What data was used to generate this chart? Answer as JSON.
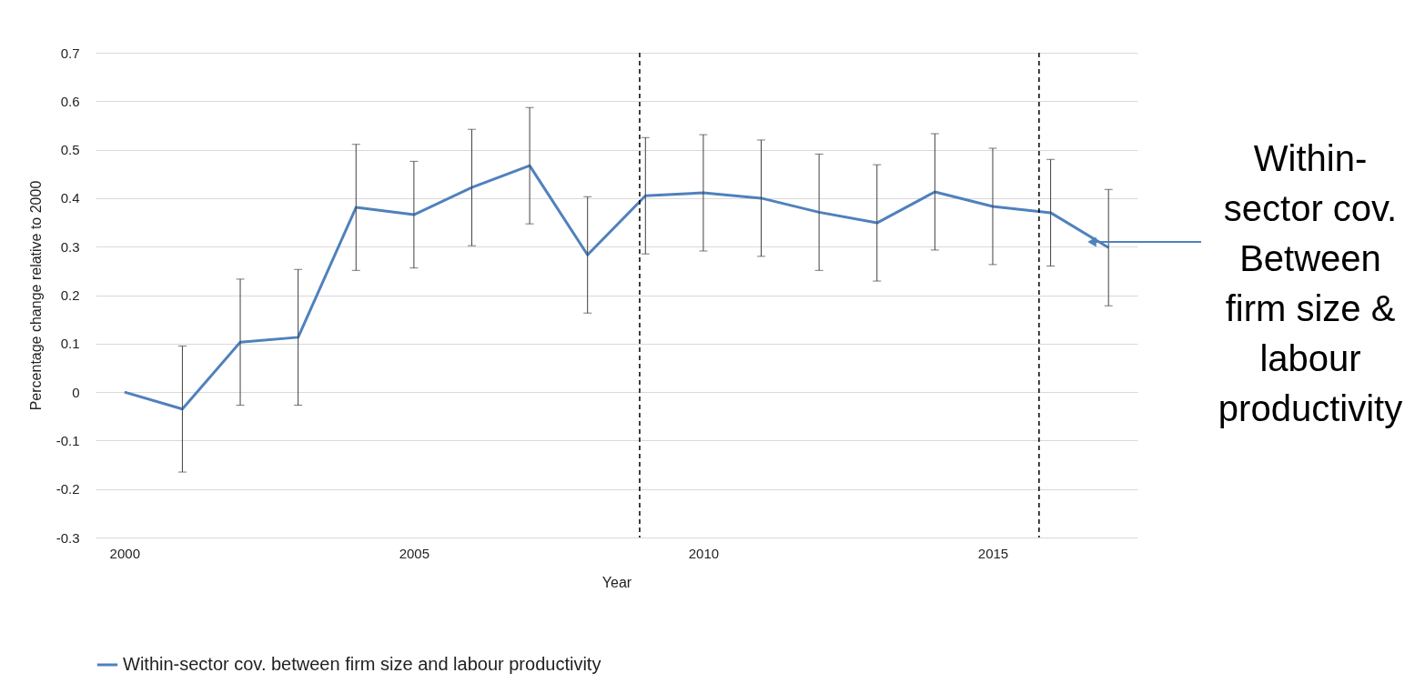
{
  "chart_data": {
    "type": "line",
    "xlabel": "Year",
    "ylabel": "Percentage change relative to 2000",
    "x": [
      2000,
      2001,
      2002,
      2003,
      2004,
      2005,
      2006,
      2007,
      2008,
      2009,
      2010,
      2011,
      2012,
      2013,
      2014,
      2015,
      2016,
      2017
    ],
    "series": [
      {
        "name": "Within-sector cov. between firm size and labour productivity",
        "color": "#4f81bd",
        "values": [
          0,
          -0.035,
          0.103,
          0.113,
          0.381,
          0.366,
          0.422,
          0.467,
          0.283,
          0.405,
          0.411,
          0.4,
          0.371,
          0.349,
          0.413,
          0.383,
          0.37,
          0.298
        ],
        "errors": [
          null,
          0.13,
          0.13,
          0.14,
          0.13,
          0.11,
          0.12,
          0.12,
          0.12,
          0.12,
          0.12,
          0.12,
          0.12,
          0.12,
          0.12,
          0.12,
          0.11,
          0.12
        ]
      }
    ],
    "xlim": [
      1999.5,
      2017.5
    ],
    "xticks": [
      2000,
      2005,
      2010,
      2015
    ],
    "ylim": [
      -0.3,
      0.7
    ],
    "yticks": [
      -0.3,
      -0.2,
      -0.1,
      0,
      0.1,
      0.2,
      0.3,
      0.4,
      0.5,
      0.6,
      0.7
    ],
    "grid": "y",
    "legend": "bottom",
    "marker": "none",
    "line_style": "solid",
    "ref_lines": [
      {
        "axis": "x",
        "value": 2008.9,
        "color": "#000000",
        "line_style": "dashed"
      },
      {
        "axis": "x",
        "value": 2015.8,
        "color": "#000000",
        "line_style": "dashed"
      }
    ],
    "annotations": [
      "Within-\nsector cov.\nBetween\nfirm size &\nlabour\nproductivity"
    ]
  }
}
